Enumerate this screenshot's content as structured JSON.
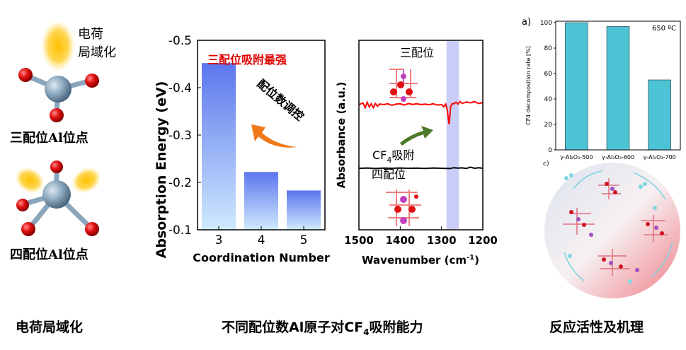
{
  "left_panel": {
    "top_glow_label": "电荷\n局域化",
    "site3_label": "三配位Al位点",
    "site4_label": "四配位Al位点",
    "caption": "电荷局域化"
  },
  "middle_panel": {
    "caption": "不同配位数Al原子对CF",
    "caption_sub": "4",
    "caption_tail": "吸附能力",
    "annotation_red": "三配位吸附最强",
    "arrow_label": "配位数调控"
  },
  "spectrum_panel": {
    "label_top": "三配位",
    "label_bottom": "四配位",
    "cf4_label": "CF",
    "cf4_sub": "4",
    "cf4_tail": "吸附",
    "ylabel": "Absorbance (a.u.)",
    "xlabel": "Wavenumber (cm",
    "xlabel_sup": "-1",
    "xlabel_tail": ")",
    "x_ticks": [
      "1500",
      "1400",
      "1300",
      "1200"
    ]
  },
  "right_panel": {
    "panel_a": "a)",
    "panel_c": "c)",
    "temp_label": "650 ºC",
    "caption": "反应活性及机理"
  },
  "chart_data": [
    {
      "type": "bar",
      "categories": [
        "3",
        "4",
        "5"
      ],
      "values": [
        -0.452,
        -0.222,
        -0.183
      ],
      "xlabel": "Coordination Number",
      "ylabel": "Absorption Energy (eV)",
      "ylim": [
        -0.1,
        -0.5
      ],
      "y_ticks": [
        "-0.5",
        "-0.4",
        "-0.3",
        "-0.2",
        "-0.1"
      ],
      "bar_color": "#6a83f2"
    },
    {
      "type": "line",
      "xlim": [
        1500,
        1200
      ],
      "highlight_band": [
        1288,
        1258
      ],
      "series": [
        {
          "color": "#ff0000",
          "x": [
            1500,
            1490,
            1485,
            1480,
            1475,
            1470,
            1465,
            1460,
            1455,
            1450,
            1440,
            1430,
            1420,
            1410,
            1400,
            1390,
            1380,
            1370,
            1360,
            1350,
            1340,
            1330,
            1320,
            1310,
            1300,
            1295,
            1290,
            1286,
            1282,
            1280,
            1278,
            1274,
            1270,
            1265,
            1260,
            1255,
            1250,
            1240,
            1230,
            1220,
            1210,
            1200
          ],
          "y": [
            0.55,
            0.65,
            0.35,
            0.7,
            0.4,
            0.6,
            0.35,
            0.62,
            0.45,
            0.58,
            0.55,
            0.6,
            0.5,
            0.58,
            0.6,
            0.52,
            0.62,
            0.56,
            0.6,
            0.55,
            0.58,
            0.54,
            0.6,
            0.52,
            0.55,
            0.4,
            0.58,
            0.2,
            -0.7,
            -0.3,
            0.4,
            0.62,
            0.6,
            0.7,
            0.58,
            0.75,
            0.62,
            0.72,
            0.66,
            0.74,
            0.62,
            0.68
          ]
        },
        {
          "color": "#000000",
          "x": [
            1500,
            1480,
            1460,
            1440,
            1420,
            1400,
            1380,
            1360,
            1340,
            1320,
            1300,
            1280,
            1270,
            1260,
            1250,
            1240,
            1230,
            1220,
            1210,
            1200
          ],
          "y": [
            0.1,
            0.12,
            0.09,
            0.11,
            0.1,
            0.12,
            0.1,
            0.11,
            0.09,
            0.12,
            0.1,
            0.08,
            0.14,
            0.11,
            0.13,
            0.09,
            0.18,
            0.1,
            0.14,
            0.1
          ]
        }
      ]
    },
    {
      "type": "bar",
      "categories": [
        "γ-Al₂O₃-500",
        "γ-Al₂O₃-600",
        "γ-Al₂O₃-700"
      ],
      "values": [
        100,
        97,
        55
      ],
      "ylabel": "CF4 decomposition rate [%]",
      "ylim": [
        0,
        100
      ],
      "y_ticks": [
        "0",
        "20",
        "40",
        "60",
        "80",
        "100"
      ],
      "bar_color": "#4dc4d6"
    }
  ]
}
